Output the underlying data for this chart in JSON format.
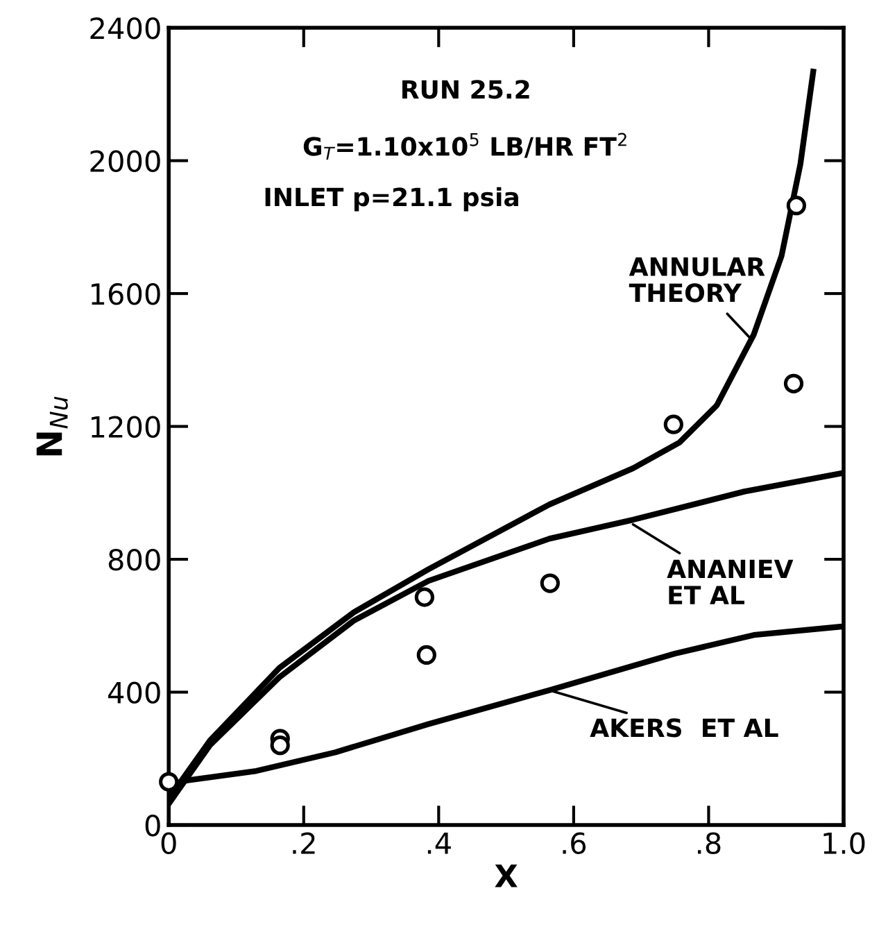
{
  "chart_data": {
    "type": "line",
    "xlabel": "X",
    "ylabel": "N$_{Nu}$",
    "xlim": [
      0,
      1.0
    ],
    "ylim": [
      0,
      2400
    ],
    "xticks": [
      0,
      {
        "value": 0.2,
        "label": ".2"
      },
      {
        "value": 0.4,
        "label": ".4"
      },
      {
        "value": 0.6,
        "label": ".6"
      },
      {
        "value": 0.8,
        "label": ".8"
      },
      {
        "value": 1.0,
        "label": "1.0"
      }
    ],
    "yticks": [
      0,
      400,
      800,
      1200,
      1600,
      2000,
      2400
    ],
    "grid": false,
    "series": [
      {
        "color": "#000000",
        "marker": "none",
        "line_style": "solid",
        "x": [
          0,
          0.061,
          0.164,
          0.274,
          0.385,
          0.564,
          0.688,
          0.757,
          0.812,
          0.867,
          0.908,
          0.936,
          0.955
        ],
        "values": [
          80,
          254,
          473,
          640,
          770,
          965,
          1074,
          1152,
          1263,
          1477,
          1713,
          1990,
          2268
        ]
      },
      {
        "color": "#000000",
        "marker": "none",
        "line_style": "solid",
        "x": [
          0,
          0.061,
          0.164,
          0.274,
          0.385,
          0.564,
          0.688,
          0.853,
          1.0
        ],
        "values": [
          64,
          240,
          445,
          615,
          735,
          862,
          919,
          1004,
          1060
        ]
      },
      {
        "color": "#000000",
        "marker": "none",
        "line_style": "solid",
        "x": [
          0,
          0.026,
          0.13,
          0.247,
          0.385,
          0.564,
          0.75,
          0.867,
          1.0
        ],
        "values": [
          120,
          134,
          163,
          219,
          304,
          406,
          516,
          572,
          598
        ]
      },
      {
        "type": "scatter",
        "color": "#000000",
        "marker": "circle",
        "x": [
          0,
          0.165,
          0.165,
          0.379,
          0.382,
          0.565,
          0.748,
          0.926,
          0.93
        ],
        "values": [
          130,
          260,
          240,
          686,
          512,
          728,
          1206,
          1329,
          1865
        ]
      }
    ],
    "annotations": [
      "RUN 25.2",
      "G$_{T}$=1.10x10$^{5}$ LB/HR FT$^{2}$",
      "INLET p=21.1 psia",
      {
        "text": "ANNULAR\nTHEORY",
        "x": 0.862,
        "y": 1465
      },
      {
        "text": "ANANIEV\nET AL",
        "x": 0.688,
        "y": 905
      },
      {
        "text": "AKERS  ET AL",
        "x": 0.564,
        "y": 406
      }
    ]
  }
}
